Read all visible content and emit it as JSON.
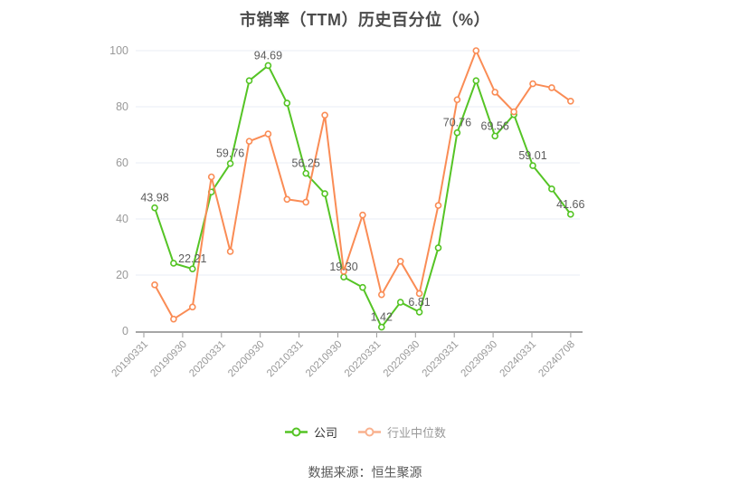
{
  "chart": {
    "title": "市销率（TTM）历史百分位（%）",
    "legend": [
      {
        "label": "公司",
        "marker_color": "#55c425",
        "text_color": "#333333"
      },
      {
        "label": "行业中位数",
        "marker_color": "#f9b18e",
        "text_color": "#999999"
      }
    ]
  },
  "chart_data": {
    "type": "line",
    "title": "市销率（TTM）历史百分位（%）",
    "x_tick_labels": [
      "20190331",
      "20190930",
      "20200331",
      "20200930",
      "20210331",
      "20210930",
      "20220331",
      "20220930",
      "20230331",
      "20230930",
      "20240331",
      "20240708"
    ],
    "n_points": 23,
    "labeled_every": 2,
    "ylim": [
      0,
      100
    ],
    "y_ticks": [
      0,
      20,
      40,
      60,
      80,
      100
    ],
    "grid": true,
    "legend_position": "bottom",
    "series": [
      {
        "name": "公司",
        "color": "#55c425",
        "values": [
          43.98,
          24.2,
          22.21,
          49.6,
          59.76,
          89.3,
          94.69,
          81.3,
          56.25,
          49.0,
          19.3,
          15.6,
          1.42,
          10.3,
          6.81,
          29.7,
          70.76,
          89.3,
          69.56,
          77.2,
          59.01,
          50.7,
          41.66
        ],
        "point_labels": [
          "43.98",
          null,
          "22.21",
          null,
          "59.76",
          null,
          "94.69",
          null,
          "56.25",
          null,
          "19.30",
          null,
          "1.42",
          null,
          "6.81",
          null,
          "70.76",
          null,
          "69.56",
          null,
          "59.01",
          null,
          "41.66"
        ]
      },
      {
        "name": "行业中位数",
        "color": "#fa8c55",
        "values": [
          16.5,
          4.3,
          8.6,
          55.0,
          28.4,
          67.7,
          70.3,
          47.0,
          46.0,
          77.0,
          21.3,
          41.4,
          13.0,
          24.9,
          13.4,
          44.8,
          82.5,
          100.0,
          85.2,
          78.2,
          88.2,
          86.8,
          82.0
        ],
        "point_labels": []
      }
    ]
  },
  "footer": {
    "text": "数据来源：恒生聚源"
  }
}
